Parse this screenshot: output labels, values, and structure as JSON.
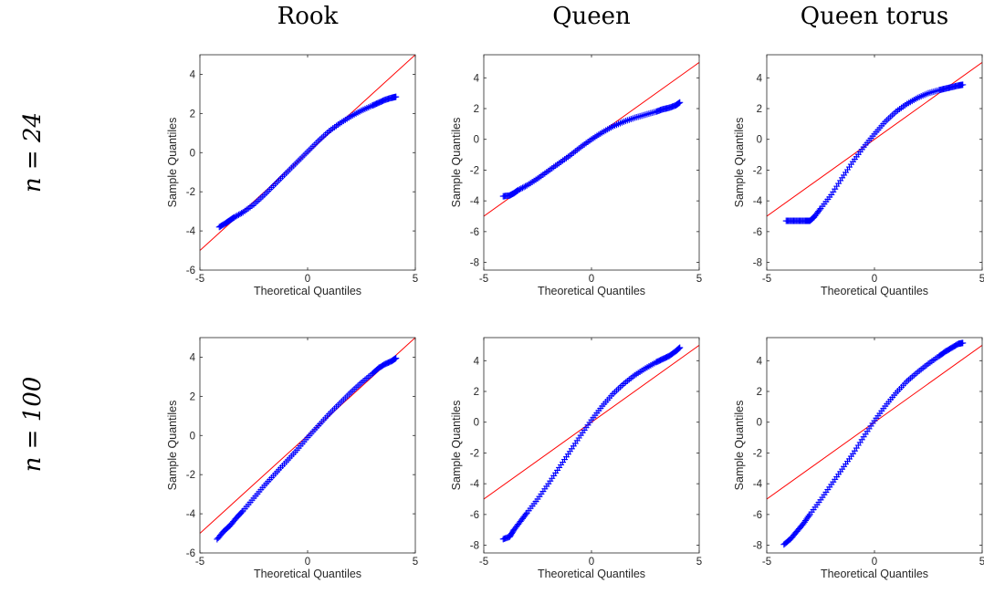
{
  "columns": [
    "Rook",
    "Queen",
    "Queen torus"
  ],
  "rows": [
    "n = 24",
    "n = 100"
  ],
  "chart_data": [
    {
      "type": "scatter",
      "row": 0,
      "col": 0,
      "xlabel": "Theoretical Quantiles",
      "ylabel": "Sample Quantiles",
      "xlim": [
        -5,
        5
      ],
      "ylim": [
        -6,
        5
      ],
      "xticks": [
        "-5",
        "0",
        "5"
      ],
      "yticks": [
        "-6",
        "-4",
        "-2",
        "0",
        "2",
        "4"
      ],
      "reference_line": [
        [
          -5,
          -5
        ],
        [
          5,
          5
        ]
      ],
      "series": [
        {
          "x": [
            -4.1,
            -3.8,
            -3.6,
            -3.4,
            -3,
            -2.5,
            -2,
            -1.5,
            -1,
            -0.5,
            0,
            0.5,
            1,
            1.5,
            2,
            2.5,
            3,
            3.3,
            3.6,
            3.9,
            4.1
          ],
          "y": [
            -3.8,
            -3.6,
            -3.45,
            -3.3,
            -3.05,
            -2.65,
            -2.15,
            -1.6,
            -1.05,
            -0.5,
            0.05,
            0.6,
            1.1,
            1.5,
            1.85,
            2.15,
            2.4,
            2.55,
            2.7,
            2.8,
            2.85
          ]
        }
      ]
    },
    {
      "type": "scatter",
      "row": 0,
      "col": 1,
      "xlabel": "Theoretical Quantiles",
      "ylabel": "Sample Quantiles",
      "xlim": [
        -5,
        5
      ],
      "ylim": [
        -8.5,
        5.5
      ],
      "xticks": [
        "-5",
        "0",
        "5"
      ],
      "yticks": [
        "-8",
        "-6",
        "-4",
        "-2",
        "0",
        "2",
        "4"
      ],
      "reference_line": [
        [
          -5,
          -5
        ],
        [
          5,
          5
        ]
      ],
      "series": [
        {
          "x": [
            -4.1,
            -3.8,
            -3.6,
            -3.4,
            -3,
            -2.5,
            -2,
            -1.5,
            -1,
            -0.5,
            0,
            0.5,
            1,
            1.5,
            2,
            2.5,
            3,
            3.3,
            3.6,
            3.9,
            4.1
          ],
          "y": [
            -3.7,
            -3.65,
            -3.5,
            -3.3,
            -3.0,
            -2.55,
            -2.05,
            -1.55,
            -1.05,
            -0.5,
            0.0,
            0.45,
            0.85,
            1.15,
            1.4,
            1.6,
            1.8,
            1.95,
            2.05,
            2.2,
            2.4
          ]
        }
      ]
    },
    {
      "type": "scatter",
      "row": 0,
      "col": 2,
      "xlabel": "Theoretical Quantiles",
      "ylabel": "Sample Quantiles",
      "xlim": [
        -5,
        5
      ],
      "ylim": [
        -8.5,
        5.5
      ],
      "xticks": [
        "-5",
        "0",
        "5"
      ],
      "yticks": [
        "-8",
        "-6",
        "-4",
        "-2",
        "0",
        "2",
        "4"
      ],
      "reference_line": [
        [
          -5,
          -5
        ],
        [
          5,
          5
        ]
      ],
      "series": [
        {
          "x": [
            -4.1,
            -3.8,
            -3.5,
            -3.2,
            -3.0,
            -2.8,
            -2.5,
            -2,
            -1.5,
            -1,
            -0.5,
            0,
            0.5,
            1,
            1.5,
            2,
            2.5,
            3,
            3.3,
            3.6,
            3.9,
            4.1
          ],
          "y": [
            -5.3,
            -5.3,
            -5.3,
            -5.3,
            -5.3,
            -5.05,
            -4.5,
            -3.6,
            -2.5,
            -1.45,
            -0.5,
            0.35,
            1.15,
            1.8,
            2.3,
            2.7,
            3.0,
            3.2,
            3.3,
            3.4,
            3.5,
            3.55
          ]
        }
      ]
    },
    {
      "type": "scatter",
      "row": 1,
      "col": 0,
      "xlabel": "Theoretical Quantiles",
      "ylabel": "Sample Quantiles",
      "xlim": [
        -5,
        5
      ],
      "ylim": [
        -6,
        5
      ],
      "xticks": [
        "-5",
        "0",
        "5"
      ],
      "yticks": [
        "-6",
        "-4",
        "-2",
        "0",
        "2",
        "4"
      ],
      "reference_line": [
        [
          -5,
          -5
        ],
        [
          5,
          5
        ]
      ],
      "series": [
        {
          "x": [
            -4.2,
            -3.9,
            -3.6,
            -3.3,
            -3,
            -2.5,
            -2,
            -1.5,
            -1,
            -0.5,
            0,
            0.5,
            1,
            1.5,
            2,
            2.5,
            3,
            3.3,
            3.6,
            3.9,
            4.1
          ],
          "y": [
            -5.3,
            -4.9,
            -4.6,
            -4.2,
            -3.85,
            -3.2,
            -2.55,
            -1.95,
            -1.35,
            -0.75,
            -0.1,
            0.5,
            1.1,
            1.65,
            2.2,
            2.7,
            3.15,
            3.45,
            3.65,
            3.8,
            3.95
          ]
        }
      ]
    },
    {
      "type": "scatter",
      "row": 1,
      "col": 1,
      "xlabel": "Theoretical Quantiles",
      "ylabel": "Sample Quantiles",
      "xlim": [
        -5,
        5
      ],
      "ylim": [
        -8.5,
        5.5
      ],
      "xticks": [
        "-5",
        "0",
        "5"
      ],
      "yticks": [
        "-8",
        "-6",
        "-4",
        "-2",
        "0",
        "2",
        "4"
      ],
      "reference_line": [
        [
          -5,
          -5
        ],
        [
          5,
          5
        ]
      ],
      "series": [
        {
          "x": [
            -4.1,
            -3.8,
            -3.6,
            -3.3,
            -3,
            -2.5,
            -2,
            -1.5,
            -1,
            -0.5,
            0,
            0.5,
            1,
            1.5,
            2,
            2.5,
            3,
            3.3,
            3.6,
            3.9,
            4.1
          ],
          "y": [
            -7.6,
            -7.45,
            -7.0,
            -6.45,
            -5.9,
            -5.0,
            -4.0,
            -2.95,
            -1.9,
            -0.85,
            0.15,
            1.05,
            1.85,
            2.5,
            3.05,
            3.5,
            3.9,
            4.1,
            4.3,
            4.6,
            4.85
          ]
        }
      ]
    },
    {
      "type": "scatter",
      "row": 1,
      "col": 2,
      "xlabel": "Theoretical Quantiles",
      "ylabel": "Sample Quantiles",
      "xlim": [
        -5,
        5
      ],
      "ylim": [
        -8.5,
        5.5
      ],
      "xticks": [
        "-5",
        "0",
        "5"
      ],
      "yticks": [
        "-8",
        "-6",
        "-4",
        "-2",
        "0",
        "2",
        "4"
      ],
      "reference_line": [
        [
          -5,
          -5
        ],
        [
          5,
          5
        ]
      ],
      "series": [
        {
          "x": [
            -4.2,
            -3.9,
            -3.6,
            -3.3,
            -3,
            -2.5,
            -2,
            -1.5,
            -1,
            -0.5,
            0,
            0.5,
            1,
            1.5,
            2,
            2.5,
            3,
            3.3,
            3.6,
            3.9,
            4.1
          ],
          "y": [
            -7.95,
            -7.6,
            -7.1,
            -6.6,
            -6.0,
            -5.05,
            -4.05,
            -3.05,
            -2.05,
            -0.95,
            0.1,
            1.05,
            1.9,
            2.65,
            3.25,
            3.8,
            4.3,
            4.6,
            4.85,
            5.1,
            5.15
          ]
        }
      ]
    }
  ]
}
